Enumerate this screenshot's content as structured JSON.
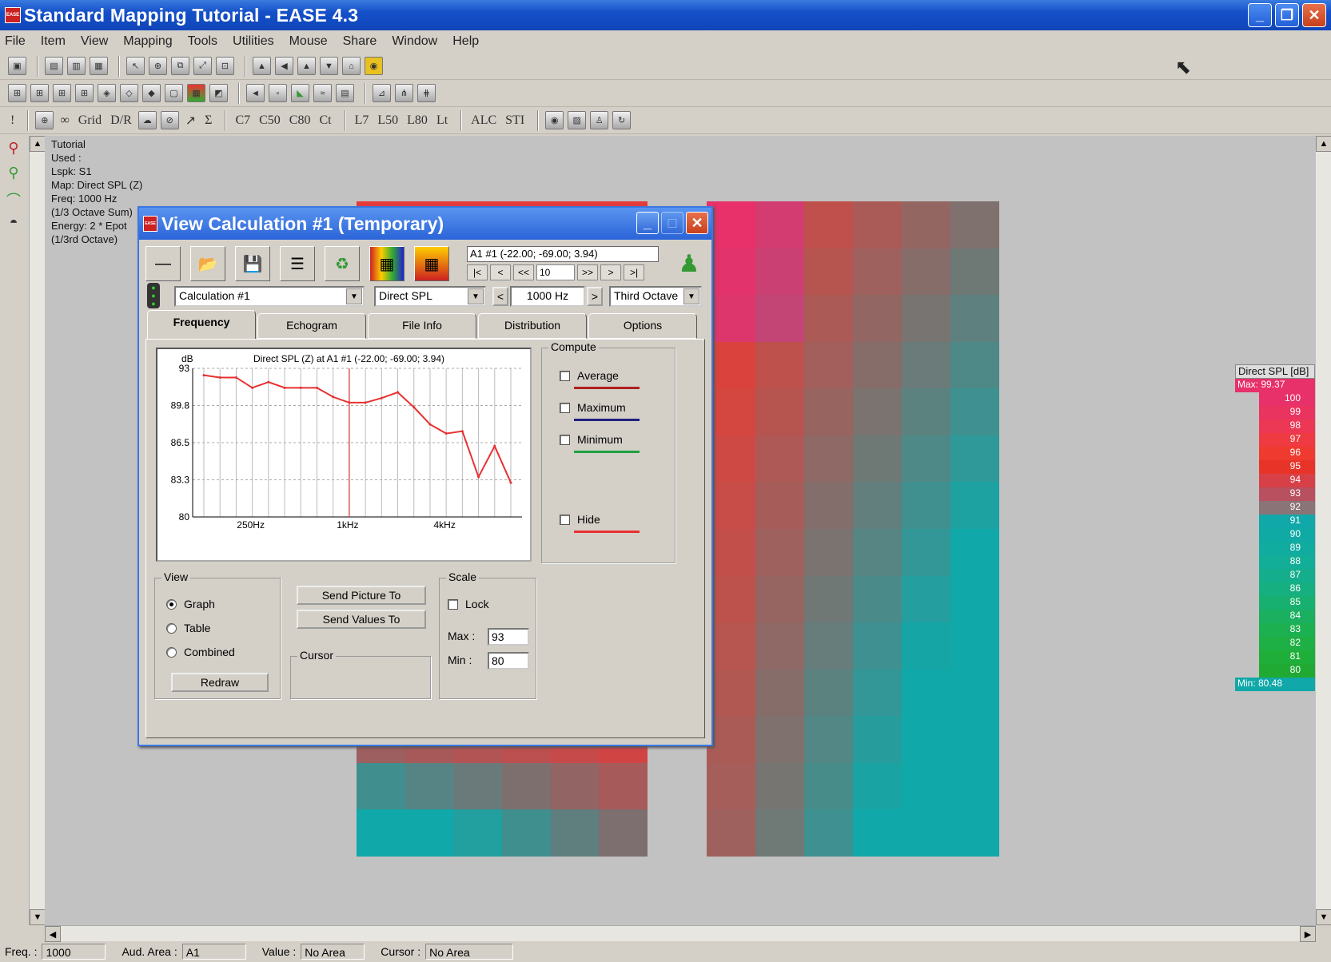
{
  "window": {
    "title": "Standard Mapping Tutorial - EASE 4.3",
    "icon_text": "EASE"
  },
  "menu": [
    "File",
    "Item",
    "View",
    "Mapping",
    "Tools",
    "Utilities",
    "Mouse",
    "Share",
    "Window",
    "Help"
  ],
  "toolbar3_text": [
    "Σ",
    "C7",
    "C50",
    "C80",
    "Ct",
    "L7",
    "L50",
    "L80",
    "Lt",
    "ALC",
    "STI",
    "Grid",
    "D/R"
  ],
  "info_lines": [
    "Tutorial",
    "Used :",
    "Lspk: S1",
    "Map: Direct SPL (Z)",
    "Freq: 1000 Hz",
    "(1/3 Octave Sum)",
    "Energy: 2 * Epot",
    "(1/3rd Octave)"
  ],
  "legend": {
    "title": "Direct SPL [dB]",
    "max_label": "Max: 99.37",
    "min_label": "Min: 80.48",
    "levels": [
      {
        "v": "100",
        "c": "#e8306a"
      },
      {
        "v": "99",
        "c": "#ea3460"
      },
      {
        "v": "98",
        "c": "#ec3855"
      },
      {
        "v": "97",
        "c": "#ee3a40"
      },
      {
        "v": "96",
        "c": "#ef3a30"
      },
      {
        "v": "95",
        "c": "#e83428"
      },
      {
        "v": "94",
        "c": "#d84048"
      },
      {
        "v": "93",
        "c": "#b85060"
      },
      {
        "v": "92",
        "c": "#8a7478"
      },
      {
        "v": "91",
        "c": "#10a8a8"
      },
      {
        "v": "90",
        "c": "#10aaa4"
      },
      {
        "v": "89",
        "c": "#10aca0"
      },
      {
        "v": "88",
        "c": "#12ae98"
      },
      {
        "v": "87",
        "c": "#14ae8c"
      },
      {
        "v": "86",
        "c": "#16b080"
      },
      {
        "v": "85",
        "c": "#18b070"
      },
      {
        "v": "84",
        "c": "#1ab060"
      },
      {
        "v": "83",
        "c": "#1cb050"
      },
      {
        "v": "82",
        "c": "#1eb044"
      },
      {
        "v": "81",
        "c": "#20ae3a"
      },
      {
        "v": "80",
        "c": "#20aa34"
      }
    ],
    "max_color": "#e8306a",
    "min_color": "#10a8a8"
  },
  "dialog": {
    "title": "View Calculation #1 (Temporary)",
    "position": "A1 #1  (-22.00; -69.00; 3.94)",
    "nav": [
      "|<",
      "<",
      "<<",
      "10",
      ">>",
      ">",
      ">|"
    ],
    "calc_combo": "Calculation #1",
    "map_combo": "Direct SPL",
    "freq_combo": "1000 Hz",
    "band_combo": "Third Octave",
    "tabs": [
      "Frequency",
      "Echogram",
      "File Info",
      "Distribution",
      "Options"
    ],
    "compute": {
      "label": "Compute",
      "items": [
        {
          "label": "Average",
          "color": "#b02020"
        },
        {
          "label": "Maximum",
          "color": "#202080"
        },
        {
          "label": "Minimum",
          "color": "#20a040"
        },
        {
          "label": "Hide",
          "color": "#e83030"
        }
      ]
    },
    "view": {
      "label": "View",
      "options": [
        "Graph",
        "Table",
        "Combined"
      ],
      "selected": "Graph",
      "redraw": "Redraw"
    },
    "send_picture": "Send Picture To",
    "send_values": "Send Values To",
    "cursor_label": "Cursor",
    "scale": {
      "label": "Scale",
      "lock": "Lock",
      "max_label": "Max :",
      "max": "93",
      "min_label": "Min :",
      "min": "80"
    }
  },
  "chart_data": {
    "type": "line",
    "title": "Direct SPL (Z) at A1 #1  (-22.00; -69.00; 3.94)",
    "ylabel": "dB",
    "ylim": [
      80,
      93
    ],
    "yticks": [
      "93",
      "89.8",
      "86.5",
      "83.3",
      "80"
    ],
    "xticks": [
      "250Hz",
      "1kHz",
      "4kHz"
    ],
    "grid": true,
    "series": [
      {
        "color": "#e83030",
        "values": [
          92.4,
          92.2,
          92.2,
          91.3,
          91.8,
          91.3,
          91.3,
          91.3,
          90.5,
          90.0,
          90.0,
          90.4,
          90.9,
          89.6,
          88.1,
          87.3,
          87.5,
          83.5,
          86.2,
          83.0
        ]
      }
    ],
    "marker_index": 9
  },
  "status": {
    "freq_label": "Freq. :",
    "freq": "1000",
    "area_label": "Aud. Area :",
    "area": "A1",
    "value_label": "Value :",
    "value": "No Area",
    "cursor_label": "Cursor :",
    "cursor": "No Area"
  }
}
